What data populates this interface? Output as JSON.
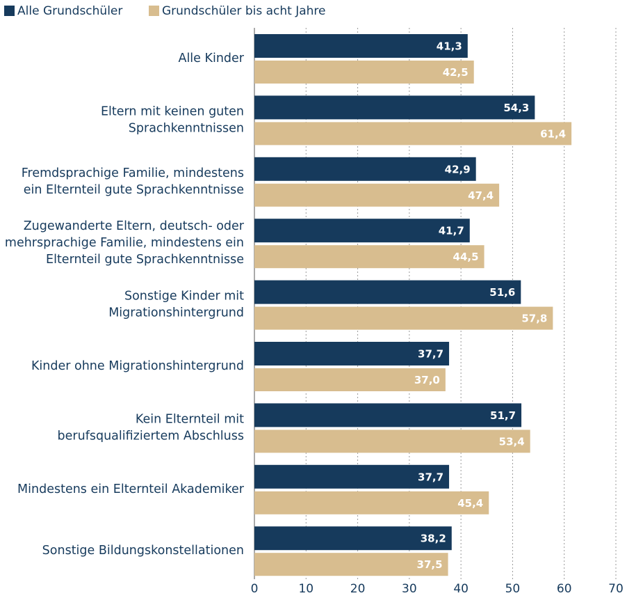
{
  "chart_data": {
    "type": "hbar",
    "categories": [
      "Alle Kinder",
      "Eltern mit keinen guten\nSprachkenntnissen",
      "Fremdsprachige Familie, mindestens\nein Elternteil gute Sprachkenntnisse",
      "Zugewanderte Eltern, deutsch- oder\nmehrsprachige Familie, mindestens ein\nElternteil gute Sprachkenntnisse",
      "Sonstige Kinder mit\nMigrationshintergrund",
      "Kinder ohne Migrationshintergrund",
      "Kein Elternteil mit\nberufsqualifiziertem Abschluss",
      "Mindestens ein Elternteil Akademiker",
      "Sonstige Bildungskonstellationen"
    ],
    "series": [
      {
        "name": "Alle Grundschüler",
        "color": "#163a5c",
        "values": [
          41.3,
          54.3,
          42.9,
          41.7,
          51.6,
          37.7,
          51.7,
          37.7,
          38.2
        ],
        "value_labels": [
          "41,3",
          "54,3",
          "42,9",
          "41,7",
          "51,6",
          "37,7",
          "51,7",
          "37,7",
          "38,2"
        ]
      },
      {
        "name": "Grundschüler bis acht Jahre",
        "color": "#d8bd8f",
        "values": [
          42.5,
          61.4,
          47.4,
          44.5,
          57.8,
          37.0,
          53.4,
          45.4,
          37.5
        ],
        "value_labels": [
          "42,5",
          "61,4",
          "47,4",
          "44,5",
          "57,8",
          "37,0",
          "53,4",
          "45,4",
          "37,5"
        ]
      }
    ],
    "xlim": [
      0,
      70
    ],
    "xticks": [
      0,
      10,
      20,
      30,
      40,
      50,
      60,
      70
    ],
    "grid": true,
    "legend": "top-left"
  }
}
